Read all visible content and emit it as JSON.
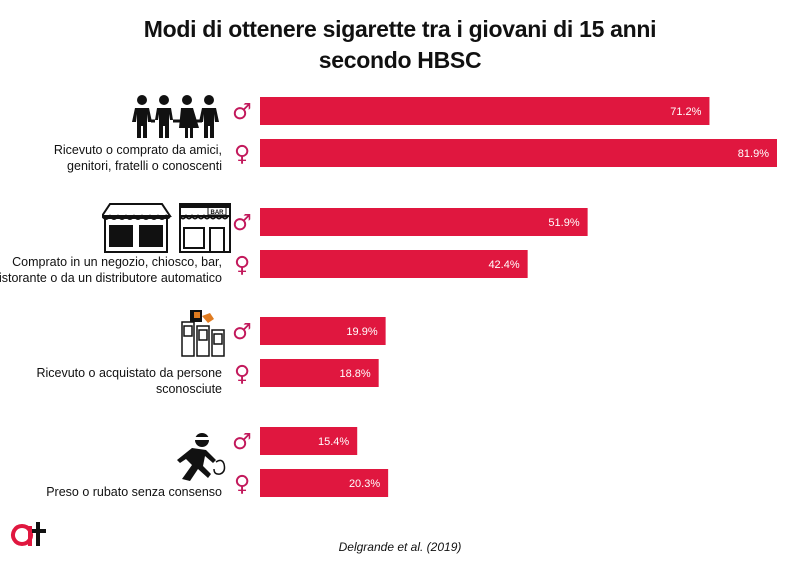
{
  "title_line1": "Modi di ottenere sigarette tra i giovani di 15 anni",
  "title_line2": "secondo HBSC",
  "source": "Delgrande et al. (2019)",
  "colors": {
    "bar": "#e0173f",
    "gender_symbol": "#c2185b",
    "text": "#111111",
    "value_text": "#ffffff"
  },
  "chart_data": {
    "type": "bar",
    "orientation": "horizontal",
    "unit": "%",
    "xlim": [
      0,
      81.9
    ],
    "grid": false,
    "series": [
      {
        "name": "♂",
        "values": [
          71.2,
          51.9,
          19.9,
          15.4
        ]
      },
      {
        "name": "♀",
        "values": [
          81.9,
          42.4,
          18.8,
          20.3
        ]
      }
    ],
    "categories": [
      {
        "label_lines": [
          "Ricevuto o comprato da amici,",
          "genitori, fratelli o conoscenti"
        ],
        "icon": "family-group-icon",
        "male": {
          "symbol": "♂",
          "value": 71.2,
          "label": "71.2%"
        },
        "female": {
          "symbol": "♀",
          "value": 81.9,
          "label": "81.9%"
        }
      },
      {
        "label_lines": [
          "Comprato in un negozio, chiosco, bar,",
          "ristorante o da un distributore automatico"
        ],
        "icon": "shop-storefront-icon",
        "shop_sign": "BAR",
        "male": {
          "symbol": "♂",
          "value": 51.9,
          "label": "51.9%"
        },
        "female": {
          "symbol": "♀",
          "value": 42.4,
          "label": "42.4%"
        }
      },
      {
        "label_lines": [
          "Ricevuto o acquistato da persone",
          "sconosciute"
        ],
        "icon": "vending-machine-icon",
        "male": {
          "symbol": "♂",
          "value": 19.9,
          "label": "19.9%"
        },
        "female": {
          "symbol": "♀",
          "value": 18.8,
          "label": "18.8%"
        }
      },
      {
        "label_lines": [
          "Preso o rubato senza consenso"
        ],
        "icon": "thief-running-icon",
        "male": {
          "symbol": "♂",
          "value": 15.4,
          "label": "15.4%"
        },
        "female": {
          "symbol": "♀",
          "value": 20.3,
          "label": "20.3%"
        }
      }
    ]
  }
}
